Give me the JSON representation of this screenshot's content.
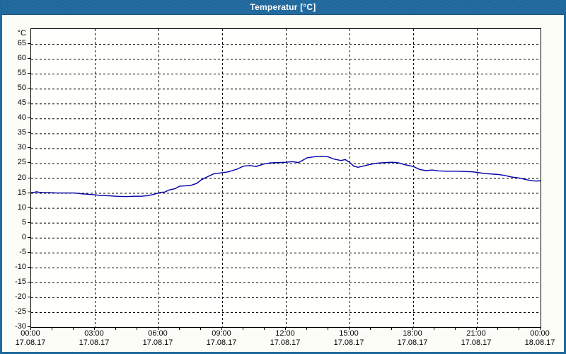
{
  "window": {
    "title": "Temperatur [°C]",
    "colors": {
      "titlebar": "#1e699e",
      "border": "#1e699e",
      "background": "#fdfdf8",
      "plot_background": "#fffffd",
      "grid": "#000000",
      "line": "#0000a8",
      "text": "#000000"
    }
  },
  "chart_data": {
    "type": "line",
    "title": "Temperatur [°C]",
    "y_unit_label": "°C",
    "xlabel": "",
    "ylabel": "°C",
    "ylim": [
      -30,
      70
    ],
    "y_tick_step": 5,
    "y_tick_labels": [
      65,
      60,
      55,
      50,
      45,
      40,
      35,
      30,
      25,
      20,
      15,
      10,
      5,
      0,
      -5,
      -10,
      -15,
      -20,
      -25,
      -30
    ],
    "x_hours_range": [
      0,
      24
    ],
    "x_minor_tick_every_hours": 1,
    "x_major_gridline_hours": [
      3,
      6,
      9,
      12,
      15,
      18,
      21
    ],
    "x_tick_labels": [
      {
        "time": "00:00",
        "date": "17.08.17",
        "hour": 0
      },
      {
        "time": "03:00",
        "date": "17.08.17",
        "hour": 3
      },
      {
        "time": "06:00",
        "date": "17.08.17",
        "hour": 6
      },
      {
        "time": "09:00",
        "date": "17.08.17",
        "hour": 9
      },
      {
        "time": "12:00",
        "date": "17.08.17",
        "hour": 12
      },
      {
        "time": "15:00",
        "date": "17.08.17",
        "hour": 15
      },
      {
        "time": "18:00",
        "date": "17.08.17",
        "hour": 18
      },
      {
        "time": "21:00",
        "date": "17.08.17",
        "hour": 21
      },
      {
        "time": "00:00",
        "date": "18.08.17",
        "hour": 24
      }
    ],
    "grid_style": "dashed",
    "legend_position": "none",
    "series": [
      {
        "name": "Temperatur",
        "color": "#0000a8",
        "points": [
          [
            0.0,
            15.1
          ],
          [
            0.15,
            15.2
          ],
          [
            0.25,
            15.4
          ],
          [
            0.4,
            15.2
          ],
          [
            0.6,
            15.1
          ],
          [
            0.9,
            15.1
          ],
          [
            1.2,
            15.0
          ],
          [
            1.5,
            15.0
          ],
          [
            1.8,
            15.0
          ],
          [
            2.0,
            15.0
          ],
          [
            2.2,
            14.9
          ],
          [
            2.4,
            14.7
          ],
          [
            2.6,
            14.6
          ],
          [
            2.8,
            14.5
          ],
          [
            3.0,
            14.4
          ],
          [
            3.2,
            14.2
          ],
          [
            3.5,
            14.1
          ],
          [
            3.8,
            14.0
          ],
          [
            4.0,
            13.9
          ],
          [
            4.3,
            13.8
          ],
          [
            4.6,
            13.8
          ],
          [
            4.9,
            13.9
          ],
          [
            5.2,
            13.9
          ],
          [
            5.5,
            14.1
          ],
          [
            5.7,
            14.4
          ],
          [
            5.9,
            14.8
          ],
          [
            6.0,
            15.0
          ],
          [
            6.1,
            15.2
          ],
          [
            6.3,
            15.3
          ],
          [
            6.5,
            16.0
          ],
          [
            6.7,
            16.3
          ],
          [
            6.8,
            16.5
          ],
          [
            7.0,
            17.3
          ],
          [
            7.3,
            17.4
          ],
          [
            7.5,
            17.5
          ],
          [
            7.8,
            18.2
          ],
          [
            8.0,
            19.3
          ],
          [
            8.3,
            20.4
          ],
          [
            8.6,
            21.4
          ],
          [
            9.0,
            21.8
          ],
          [
            9.3,
            22.1
          ],
          [
            9.7,
            23.0
          ],
          [
            10.0,
            24.0
          ],
          [
            10.3,
            24.2
          ],
          [
            10.6,
            23.9
          ],
          [
            11.0,
            24.8
          ],
          [
            11.3,
            25.1
          ],
          [
            11.7,
            25.2
          ],
          [
            12.0,
            25.3
          ],
          [
            12.3,
            25.5
          ],
          [
            12.6,
            25.2
          ],
          [
            13.0,
            26.8
          ],
          [
            13.4,
            27.2
          ],
          [
            13.7,
            27.3
          ],
          [
            14.0,
            27.1
          ],
          [
            14.3,
            26.3
          ],
          [
            14.6,
            25.9
          ],
          [
            14.8,
            26.2
          ],
          [
            15.0,
            25.3
          ],
          [
            15.2,
            24.0
          ],
          [
            15.4,
            23.6
          ],
          [
            15.7,
            24.1
          ],
          [
            16.0,
            24.6
          ],
          [
            16.3,
            25.0
          ],
          [
            16.7,
            25.2
          ],
          [
            17.0,
            25.3
          ],
          [
            17.3,
            25.1
          ],
          [
            17.6,
            24.5
          ],
          [
            18.0,
            23.9
          ],
          [
            18.3,
            22.9
          ],
          [
            18.6,
            22.5
          ],
          [
            18.9,
            22.7
          ],
          [
            19.2,
            22.4
          ],
          [
            19.6,
            22.3
          ],
          [
            20.0,
            22.3
          ],
          [
            20.4,
            22.2
          ],
          [
            20.8,
            22.1
          ],
          [
            21.0,
            21.9
          ],
          [
            21.4,
            21.5
          ],
          [
            21.8,
            21.3
          ],
          [
            22.0,
            21.2
          ],
          [
            22.3,
            20.9
          ],
          [
            22.6,
            20.4
          ],
          [
            23.0,
            20.0
          ],
          [
            23.3,
            19.5
          ],
          [
            23.6,
            19.1
          ],
          [
            23.8,
            19.0
          ],
          [
            24.0,
            19.1
          ]
        ]
      }
    ]
  }
}
